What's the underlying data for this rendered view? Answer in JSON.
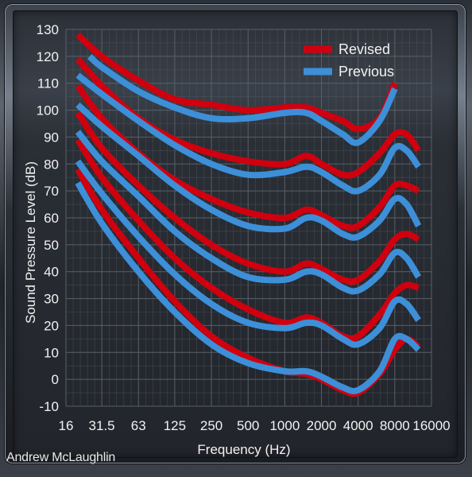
{
  "credit": "Andrew McLaughlin",
  "colors": {
    "revised": "#d0000f",
    "previous": "#3d8fd8",
    "grid": "#586069"
  },
  "chart_data": {
    "type": "line",
    "title": "",
    "xlabel": "Frequency (Hz)",
    "ylabel": "Sound Pressure Level (dB)",
    "x_scale": "log2",
    "xlim": [
      16,
      16000
    ],
    "ylim": [
      -10,
      130
    ],
    "x_ticks": [
      16,
      31.5,
      63,
      125,
      250,
      500,
      1000,
      2000,
      4000,
      8000,
      16000
    ],
    "x_tick_labels": [
      "16",
      "31.5",
      "63",
      "125",
      "250",
      "500",
      "1000",
      "2000",
      "4000",
      "8000",
      "16000"
    ],
    "y_ticks": [
      -10,
      0,
      10,
      20,
      30,
      40,
      50,
      60,
      70,
      80,
      90,
      100,
      110,
      120,
      130
    ],
    "grid": true,
    "legend": {
      "placement": "top-right",
      "entries": [
        "Revised",
        "Previous"
      ]
    },
    "series": [
      {
        "name": "Revised",
        "curves": [
          {
            "x": [
              20,
              31.5,
              63,
              125,
              250,
              500,
              1000,
              1500,
              2000,
              3000,
              4000,
              6000,
              8000,
              10000,
              12500
            ],
            "y": [
              128,
              120,
              111,
              104,
              102,
              100,
              101,
              101,
              99,
              96,
              93,
              97,
              110,
              null,
              null
            ]
          },
          {
            "x": [
              20,
              31.5,
              63,
              125,
              250,
              500,
              1000,
              1500,
              2000,
              3000,
              4000,
              6000,
              8000,
              10000,
              12500
            ],
            "y": [
              119,
              109,
              97,
              89,
              84,
              81,
              80,
              83,
              80,
              76,
              77,
              84,
              91,
              91,
              85
            ]
          },
          {
            "x": [
              20,
              31.5,
              63,
              125,
              250,
              500,
              1000,
              1500,
              2000,
              3000,
              4000,
              6000,
              8000,
              10000,
              12500
            ],
            "y": [
              109,
              97,
              84,
              74,
              67,
              62,
              60,
              63,
              61,
              57,
              57,
              64,
              72,
              72,
              70
            ]
          },
          {
            "x": [
              20,
              31.5,
              63,
              125,
              250,
              500,
              1000,
              1500,
              2000,
              3000,
              4000,
              6000,
              8000,
              10000,
              12500
            ],
            "y": [
              99,
              86,
              72,
              60,
              50,
              43,
              40,
              43,
              41,
              37,
              37,
              44,
              52,
              54,
              52
            ]
          },
          {
            "x": [
              20,
              31.5,
              63,
              125,
              250,
              500,
              1000,
              1500,
              2000,
              3000,
              4000,
              6000,
              8000,
              10000,
              12500
            ],
            "y": [
              89,
              75,
              59,
              45,
              34,
              26,
              21,
              23,
              21,
              16,
              16,
              24,
              32,
              35,
              34
            ]
          },
          {
            "x": [
              20,
              31.5,
              63,
              125,
              250,
              500,
              1000,
              1500,
              2000,
              3000,
              4000,
              6000,
              8000,
              10000,
              12500
            ],
            "y": [
              78,
              63,
              45,
              29,
              16,
              8,
              3,
              2,
              0,
              -4,
              -5,
              2,
              11,
              15,
              12
            ]
          }
        ]
      },
      {
        "name": "Previous",
        "curves": [
          {
            "x": [
              25,
              31.5,
              63,
              125,
              250,
              500,
              1000,
              1500,
              2000,
              3000,
              4000,
              6000,
              8000
            ],
            "y": [
              120,
              116,
              107,
              101,
              97,
              97,
              99,
              99,
              96,
              91,
              88,
              96,
              108
            ]
          },
          {
            "x": [
              20,
              31.5,
              63,
              125,
              250,
              500,
              1000,
              1500,
              2000,
              3000,
              4000,
              6000,
              8000,
              10000,
              12500
            ],
            "y": [
              113,
              106,
              96,
              87,
              80,
              76,
              77,
              79,
              77,
              72,
              70,
              76,
              86,
              85,
              79
            ]
          },
          {
            "x": [
              20,
              31.5,
              63,
              125,
              250,
              500,
              1000,
              1500,
              2000,
              3000,
              4000,
              6000,
              8000,
              10000,
              12500
            ],
            "y": [
              102,
              94,
              83,
              72,
              63,
              57,
              56,
              60,
              59,
              54,
              53,
              59,
              67,
              65,
              57
            ]
          },
          {
            "x": [
              20,
              31.5,
              63,
              125,
              250,
              500,
              1000,
              1500,
              2000,
              3000,
              4000,
              6000,
              8000,
              10000,
              12500
            ],
            "y": [
              92,
              81,
              68,
              55,
              45,
              38,
              37,
              40,
              39,
              34,
              33,
              39,
              47,
              45,
              38
            ]
          },
          {
            "x": [
              20,
              31.5,
              63,
              125,
              250,
              500,
              1000,
              1500,
              2000,
              3000,
              4000,
              6000,
              8000,
              10000,
              12500
            ],
            "y": [
              81,
              69,
              53,
              39,
              28,
              21,
              19,
              21,
              20,
              15,
              13,
              19,
              29,
              28,
              22
            ]
          },
          {
            "x": [
              20,
              31.5,
              63,
              125,
              250,
              500,
              1000,
              1500,
              2000,
              3000,
              4000,
              6000,
              8000,
              10000,
              12500
            ],
            "y": [
              73,
              58,
              40,
              25,
              13,
              6,
              3,
              3,
              1,
              -3,
              -4,
              3,
              15,
              15,
              11
            ]
          }
        ]
      }
    ]
  }
}
